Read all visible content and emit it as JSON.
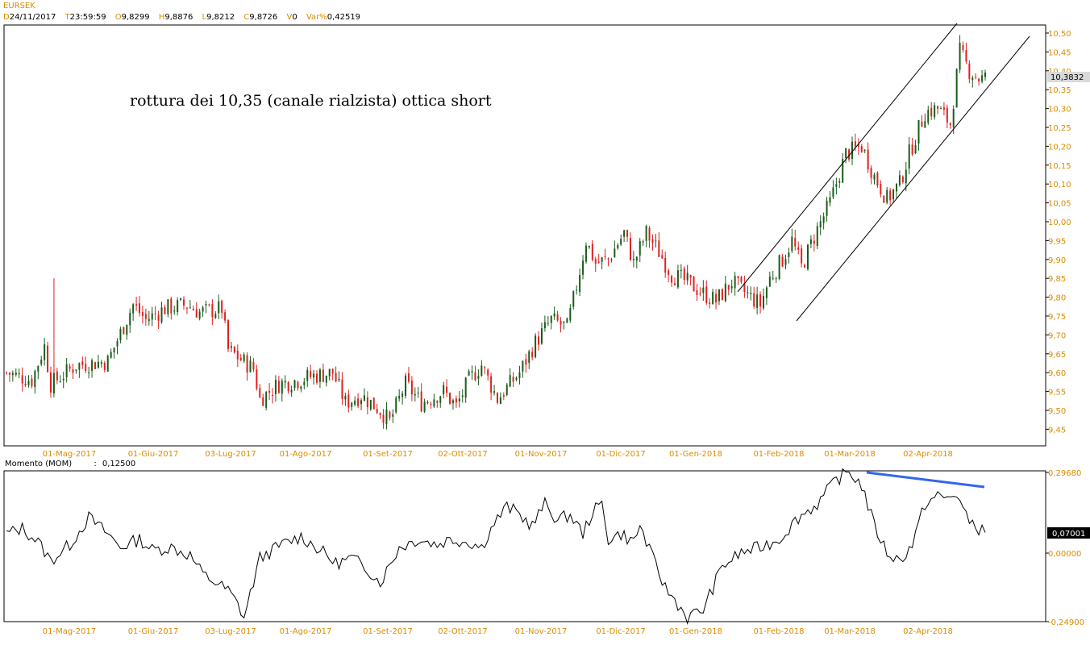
{
  "header": {
    "symbol": "EURSEK",
    "ohlc": [
      {
        "key": "D",
        "value": "24/11/2017"
      },
      {
        "key": "T",
        "value": "23:59:59"
      },
      {
        "key": "O",
        "value": "9,8299"
      },
      {
        "key": "H",
        "value": "9,8876"
      },
      {
        "key": "L",
        "value": "9,8212"
      },
      {
        "key": "C",
        "value": "9,8726"
      },
      {
        "key": "V",
        "value": "0"
      },
      {
        "key": "Var%",
        "value": "0,42519"
      }
    ]
  },
  "annotation": "rottura dei 10,35 (canale rialzista) ottica short",
  "indicator": {
    "name": "Momento (MOM)",
    "sep": ":",
    "value": "0,12500"
  },
  "colors": {
    "up": "#1a5c1a",
    "down": "#e02020",
    "axis_text": "#d98c00",
    "trend_blue": "#3366ee"
  },
  "chart_data": [
    {
      "type": "candlestick",
      "title": "EURSEK",
      "x_labels": [
        "01-Mag-2017",
        "01-Giu-2017",
        "03-Lug-2017",
        "01-Ago-2017",
        "01-Set-2017",
        "02-Ott-2017",
        "01-Nov-2017",
        "01-Dic-2017",
        "01-Gen-2018",
        "01-Feb-2018",
        "01-Mar-2018",
        "02-Apr-2018"
      ],
      "y_ticks": [
        "10,50",
        "10,45",
        "10,40",
        "10,35",
        "10,30",
        "10,25",
        "10,20",
        "10,15",
        "10,10",
        "10,05",
        "10,00",
        "9,95",
        "9,90",
        "9,85",
        "9,80",
        "9,75",
        "9,70",
        "9,65",
        "9,60",
        "9,55",
        "9,50",
        "9,45"
      ],
      "ylim": [
        9.42,
        10.52
      ],
      "last_value": "10,3832",
      "close_path": [
        [
          0,
          9.6
        ],
        [
          8,
          9.58
        ],
        [
          12,
          9.67
        ],
        [
          14,
          9.57
        ],
        [
          22,
          9.62
        ],
        [
          32,
          9.63
        ],
        [
          40,
          9.78
        ],
        [
          44,
          9.74
        ],
        [
          50,
          9.77
        ],
        [
          57,
          9.78
        ],
        [
          61,
          9.76
        ],
        [
          68,
          9.77
        ],
        [
          70,
          9.66
        ],
        [
          78,
          9.61
        ],
        [
          80,
          9.53
        ],
        [
          86,
          9.57
        ],
        [
          92,
          9.58
        ],
        [
          96,
          9.59
        ],
        [
          103,
          9.6
        ],
        [
          107,
          9.52
        ],
        [
          112,
          9.54
        ],
        [
          118,
          9.5
        ],
        [
          121,
          9.47
        ],
        [
          126,
          9.57
        ],
        [
          131,
          9.52
        ],
        [
          138,
          9.55
        ],
        [
          142,
          9.51
        ],
        [
          146,
          9.58
        ],
        [
          150,
          9.62
        ],
        [
          155,
          9.53
        ],
        [
          162,
          9.6
        ],
        [
          167,
          9.68
        ],
        [
          172,
          9.74
        ],
        [
          177,
          9.72
        ],
        [
          180,
          9.83
        ],
        [
          183,
          9.95
        ],
        [
          186,
          9.89
        ],
        [
          190,
          9.9
        ],
        [
          195,
          9.97
        ],
        [
          198,
          9.89
        ],
        [
          202,
          9.97
        ],
        [
          206,
          9.92
        ],
        [
          210,
          9.86
        ],
        [
          215,
          9.84
        ],
        [
          220,
          9.81
        ],
        [
          224,
          9.79
        ],
        [
          229,
          9.84
        ],
        [
          232,
          9.82
        ],
        [
          235,
          9.8
        ],
        [
          238,
          9.78
        ],
        [
          241,
          9.85
        ],
        [
          245,
          9.9
        ],
        [
          248,
          9.95
        ],
        [
          251,
          9.88
        ],
        [
          256,
          9.98
        ],
        [
          260,
          10.05
        ],
        [
          265,
          10.18
        ],
        [
          270,
          10.2
        ],
        [
          274,
          10.12
        ],
        [
          278,
          10.06
        ],
        [
          282,
          10.1
        ],
        [
          285,
          10.18
        ],
        [
          290,
          10.29
        ],
        [
          294,
          10.3
        ],
        [
          298,
          10.26
        ],
        [
          301,
          10.45
        ],
        [
          304,
          10.4
        ],
        [
          307,
          10.38
        ]
      ],
      "annotations": [
        "rottura dei 10,35 (canale rialzista) ottica short"
      ]
    },
    {
      "type": "line",
      "title": "Momento (MOM)",
      "series": [
        {
          "name": "Momento (MOM)",
          "values": [
            [
              0,
              0.07
            ],
            [
              5,
              0.09
            ],
            [
              10,
              0.04
            ],
            [
              14,
              -0.03
            ],
            [
              20,
              0.03
            ],
            [
              26,
              0.13
            ],
            [
              32,
              0.07
            ],
            [
              36,
              0.02
            ],
            [
              42,
              0.05
            ],
            [
              46,
              0.01
            ],
            [
              52,
              0.02
            ],
            [
              58,
              -0.01
            ],
            [
              62,
              -0.08
            ],
            [
              66,
              -0.11
            ],
            [
              70,
              -0.14
            ],
            [
              73,
              -0.19
            ],
            [
              75,
              -0.24
            ],
            [
              80,
              -0.02
            ],
            [
              87,
              0.03
            ],
            [
              93,
              0.06
            ],
            [
              99,
              0.01
            ],
            [
              104,
              -0.04
            ],
            [
              109,
              -0.02
            ],
            [
              114,
              -0.06
            ],
            [
              118,
              -0.11
            ],
            [
              124,
              0.02
            ],
            [
              130,
              0.05
            ],
            [
              136,
              0.03
            ],
            [
              140,
              0.05
            ],
            [
              146,
              0.04
            ],
            [
              150,
              0.02
            ],
            [
              154,
              0.11
            ],
            [
              158,
              0.17
            ],
            [
              161,
              0.15
            ],
            [
              166,
              0.1
            ],
            [
              170,
              0.18
            ],
            [
              174,
              0.12
            ],
            [
              178,
              0.14
            ],
            [
              182,
              0.07
            ],
            [
              185,
              0.15
            ],
            [
              188,
              0.18
            ],
            [
              190,
              0.05
            ],
            [
              194,
              0.07
            ],
            [
              198,
              0.04
            ],
            [
              200,
              0.1
            ],
            [
              204,
              -0.02
            ],
            [
              208,
              -0.13
            ],
            [
              212,
              -0.19
            ],
            [
              215,
              -0.24
            ],
            [
              220,
              -0.21
            ],
            [
              226,
              -0.05
            ],
            [
              232,
              0.0
            ],
            [
              238,
              0.02
            ],
            [
              244,
              0.05
            ],
            [
              250,
              0.13
            ],
            [
              256,
              0.18
            ],
            [
              262,
              0.27
            ],
            [
              266,
              0.3
            ],
            [
              270,
              0.25
            ],
            [
              274,
              0.1
            ],
            [
              278,
              0.0
            ],
            [
              282,
              -0.03
            ],
            [
              286,
              0.03
            ],
            [
              290,
              0.18
            ],
            [
              294,
              0.21
            ],
            [
              297,
              0.2
            ],
            [
              300,
              0.22
            ],
            [
              303,
              0.13
            ],
            [
              306,
              0.1
            ],
            [
              309,
              0.07
            ]
          ]
        }
      ],
      "x_labels": [
        "01-Mag-2017",
        "01-Giu-2017",
        "03-Lug-2017",
        "01-Ago-2017",
        "01-Set-2017",
        "02-Ott-2017",
        "01-Nov-2017",
        "01-Dic-2017",
        "01-Gen-2018",
        "01-Feb-2018",
        "01-Mar-2018",
        "02-Apr-2018"
      ],
      "y_ticks": [
        "0,29680",
        "0,00000",
        "-0,24900"
      ],
      "last_value": "0,07001",
      "ylim": [
        -0.249,
        0.2968
      ]
    }
  ]
}
